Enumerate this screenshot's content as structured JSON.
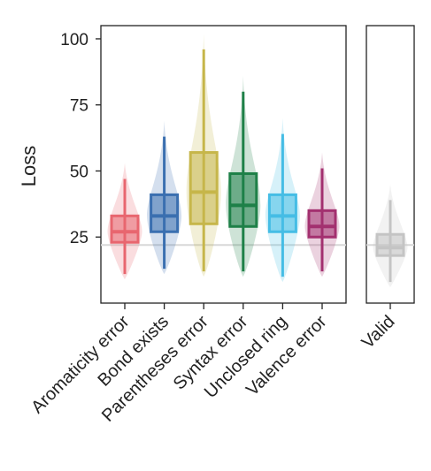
{
  "chart_data": [
    {
      "type": "boxplot",
      "ylabel": "Loss",
      "ylim": [
        0,
        105
      ],
      "yticks": [
        25,
        50,
        75,
        100
      ],
      "reference_line": 22,
      "grid": false,
      "categories": [
        "Aromaticity error",
        "Bond exists",
        "Parentheses error",
        "Syntax error",
        "Unclosed ring",
        "Valence error"
      ],
      "boxes": [
        {
          "category": "Aromaticity error",
          "color": "#e8666f",
          "min": 11,
          "q1": 23,
          "median": 27,
          "q3": 33,
          "max": 47
        },
        {
          "category": "Bond exists",
          "color": "#3a6fb0",
          "min": 13,
          "q1": 27,
          "median": 33,
          "q3": 41,
          "max": 63
        },
        {
          "category": "Parentheses error",
          "color": "#c6b64a",
          "min": 12,
          "q1": 30,
          "median": 42,
          "q3": 57,
          "max": 96
        },
        {
          "category": "Syntax error",
          "color": "#1e8048",
          "min": 12,
          "q1": 29,
          "median": 37,
          "q3": 49,
          "max": 80
        },
        {
          "category": "Unclosed ring",
          "color": "#45bde5",
          "min": 10,
          "q1": 27,
          "median": 33,
          "q3": 41,
          "max": 64
        },
        {
          "category": "Valence error",
          "color": "#a3306f",
          "min": 12,
          "q1": 25,
          "median": 29,
          "q3": 35,
          "max": 51
        }
      ]
    },
    {
      "type": "boxplot",
      "ylim": [
        0,
        105
      ],
      "reference_line": 22,
      "categories": [
        "Valid"
      ],
      "boxes": [
        {
          "category": "Valid",
          "color": "#c4c4c4",
          "min": 8,
          "q1": 18,
          "median": 21,
          "q3": 26,
          "max": 39
        }
      ]
    }
  ]
}
